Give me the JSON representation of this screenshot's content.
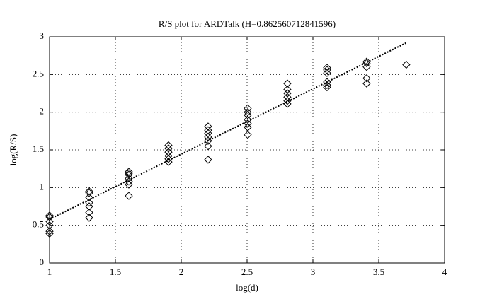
{
  "chart_data": {
    "type": "scatter",
    "title": "R/S plot for ARDTalk (H=0.862560712841596)",
    "x_label": "log(d)",
    "y_label": "log(R/S)",
    "x": [
      1,
      1,
      1,
      1,
      1,
      1,
      1.301,
      1.301,
      1.301,
      1.301,
      1.301,
      1.301,
      1.301,
      1.602,
      1.602,
      1.602,
      1.602,
      1.602,
      1.602,
      1.602,
      1.903,
      1.903,
      1.903,
      1.903,
      1.903,
      1.903,
      2.204,
      2.204,
      2.204,
      2.204,
      2.204,
      2.204,
      2.204,
      2.505,
      2.505,
      2.505,
      2.505,
      2.505,
      2.505,
      2.505,
      2.806,
      2.806,
      2.806,
      2.806,
      2.806,
      2.806,
      3.107,
      3.107,
      3.107,
      3.107,
      3.107,
      3.107,
      3.408,
      3.408,
      3.408,
      3.408,
      3.408,
      3.709
    ],
    "values": [
      0.63,
      0.61,
      0.55,
      0.5,
      0.42,
      0.39,
      0.95,
      0.93,
      0.87,
      0.8,
      0.75,
      0.67,
      0.6,
      1.21,
      1.19,
      1.17,
      1.12,
      1.08,
      1.04,
      0.89,
      1.56,
      1.52,
      1.47,
      1.42,
      1.38,
      1.34,
      1.81,
      1.76,
      1.72,
      1.67,
      1.62,
      1.55,
      1.37,
      2.05,
      2.0,
      1.96,
      1.9,
      1.85,
      1.8,
      1.7,
      2.38,
      2.3,
      2.25,
      2.2,
      2.15,
      2.11,
      2.59,
      2.56,
      2.52,
      2.4,
      2.36,
      2.33,
      2.67,
      2.65,
      2.6,
      2.45,
      2.38,
      2.63
    ],
    "color": "#000000",
    "fit": {
      "x": [
        1,
        3.709
      ],
      "values": [
        0.58,
        2.92
      ]
    },
    "xlim": [
      1,
      4
    ],
    "ylim": [
      0,
      3
    ],
    "xticks": [
      1,
      1.5,
      2,
      2.5,
      3,
      3.5,
      4
    ],
    "yticks": [
      0,
      0.5,
      1,
      1.5,
      2,
      2.5,
      3
    ],
    "grid": true
  }
}
